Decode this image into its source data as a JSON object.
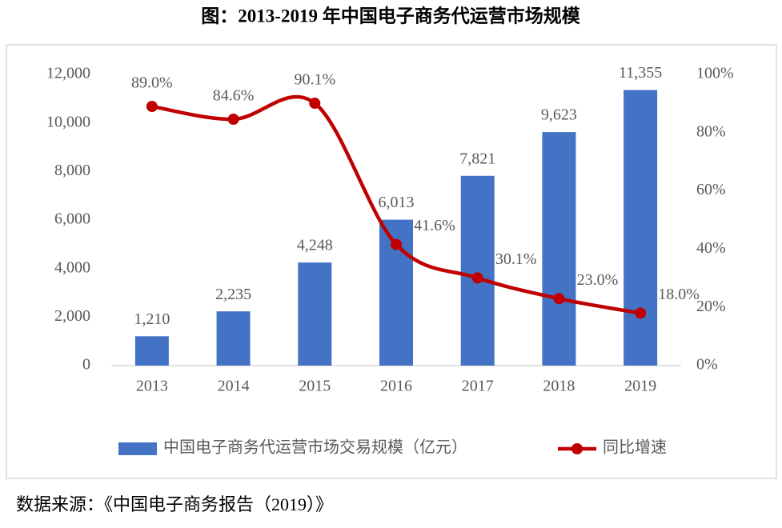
{
  "chart_data": {
    "type": "bar",
    "title": "图：2013-2019 年中国电子商务代运营市场规模",
    "source": "数据来源：《中国电子商务报告（2019）》",
    "categories": [
      "2013",
      "2014",
      "2015",
      "2016",
      "2017",
      "2018",
      "2019"
    ],
    "series": [
      {
        "name": "中国电子商务代运营市场交易规模（亿元）",
        "type": "bar",
        "color": "#4472c4",
        "values": [
          1210,
          2235,
          4248,
          6013,
          7821,
          9623,
          11355
        ],
        "value_labels": [
          "1,210",
          "2,235",
          "4,248",
          "6,013",
          "7,821",
          "9,623",
          "11,355"
        ]
      },
      {
        "name": "同比增速",
        "type": "line",
        "axis": "y2",
        "color": "#c00000",
        "values": [
          89.0,
          84.6,
          90.1,
          41.6,
          30.1,
          23.0,
          18.0
        ],
        "value_labels": [
          "89.0%",
          "84.6%",
          "90.1%",
          "41.6%",
          "30.1%",
          "23.0%",
          "18.0%"
        ]
      }
    ],
    "ylim": [
      0,
      12000
    ],
    "yticks": [
      0,
      {
        "value": 2000,
        "label": "2,000"
      },
      {
        "value": 4000,
        "label": "4,000"
      },
      {
        "value": 6000,
        "label": "6,000"
      },
      {
        "value": 8000,
        "label": "8,000"
      },
      {
        "value": 10000,
        "label": "10,000"
      },
      {
        "value": 12000,
        "label": "12,000"
      }
    ],
    "y2lim": [
      0,
      100
    ],
    "y2ticks": [
      {
        "value": 0,
        "label": "0%"
      },
      {
        "value": 20,
        "label": "20%"
      },
      {
        "value": 40,
        "label": "40%"
      },
      {
        "value": 60,
        "label": "60%"
      },
      {
        "value": 80,
        "label": "80%"
      },
      {
        "value": 100,
        "label": "100%"
      }
    ],
    "legend": "bottom"
  }
}
